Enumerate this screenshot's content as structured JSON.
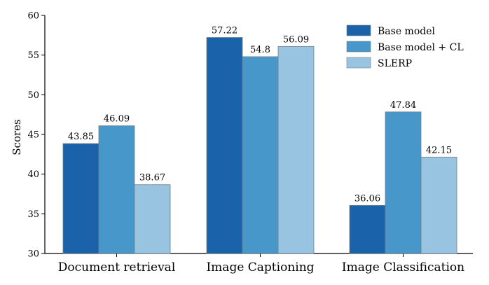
{
  "chart_data": {
    "type": "bar",
    "categories": [
      "Document retrieval",
      "Image Captioning",
      "Image Classification"
    ],
    "series": [
      {
        "name": "Base model",
        "values": [
          43.85,
          57.22,
          36.06
        ],
        "color": "#1a63ab"
      },
      {
        "name": "Base model + CL",
        "values": [
          46.09,
          54.8,
          47.84
        ],
        "color": "#4897cb"
      },
      {
        "name": "SLERP",
        "values": [
          38.67,
          56.09,
          42.15
        ],
        "color": "#98c4e2"
      }
    ],
    "data_labels": [
      [
        "43.85",
        "46.09",
        "38.67"
      ],
      [
        "57.22",
        "54.8",
        "56.09"
      ],
      [
        "36.06",
        "47.84",
        "42.15"
      ]
    ],
    "ylabel": "Scores",
    "xlabel": "",
    "ylim": [
      30,
      60
    ],
    "yticks": [
      30,
      35,
      40,
      45,
      50,
      55,
      60
    ],
    "ytick_labels": [
      "30",
      "35",
      "40",
      "45",
      "50",
      "55",
      "60"
    ],
    "grid": false,
    "legend": {
      "position": "top-right"
    }
  }
}
